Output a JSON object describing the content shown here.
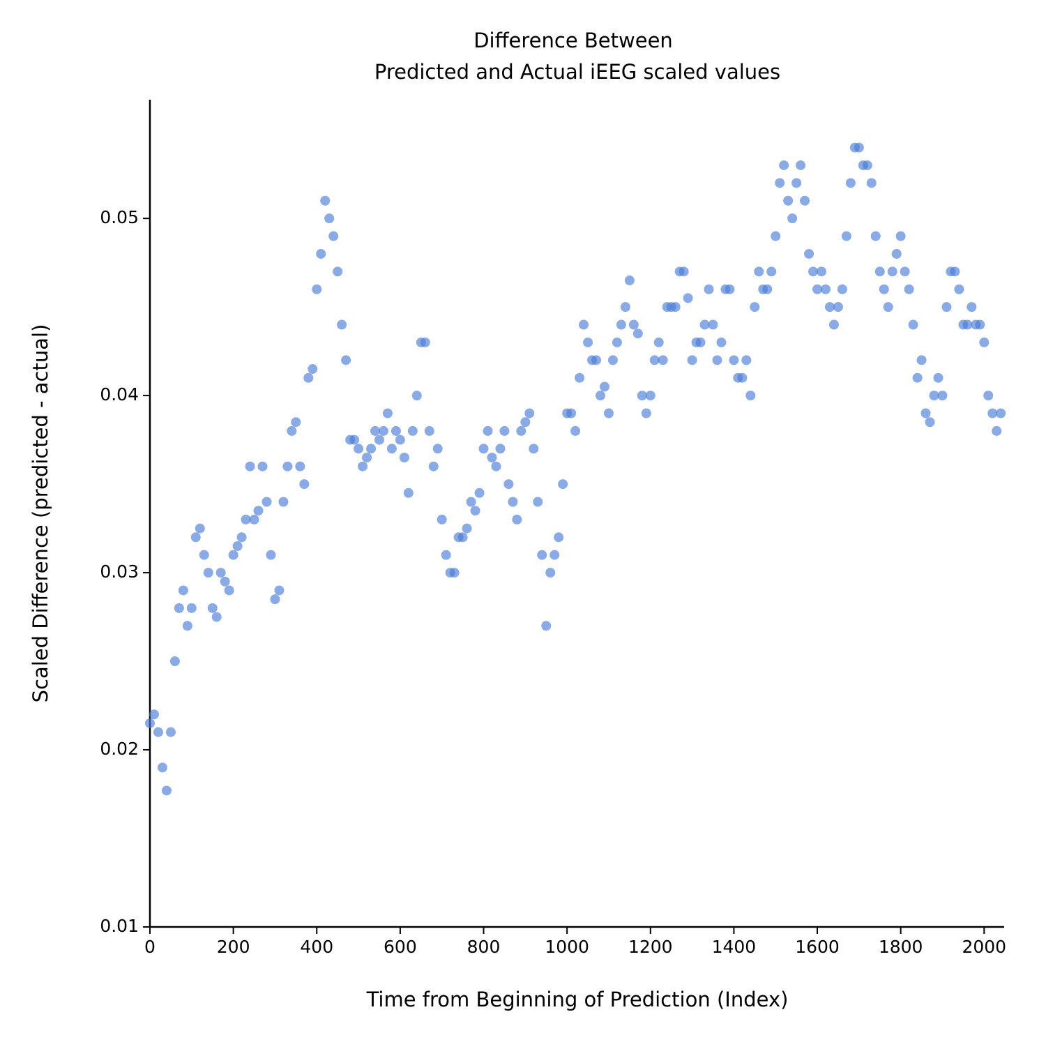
{
  "chart_data": {
    "type": "scatter",
    "title": [
      "Difference Between",
      "Predicted and Actual iEEG scaled values"
    ],
    "x_label": "Time from Beginning of Prediction (Index)",
    "y_label": "Scaled Difference (predicted - actual)",
    "color": "#4a7dd6",
    "xlim": [
      0,
      2048
    ],
    "ylim": [
      0.01,
      0.0567
    ],
    "xticks": [
      0,
      200,
      400,
      600,
      800,
      1000,
      1200,
      1400,
      1600,
      1800,
      2000
    ],
    "yticks": [
      0.01,
      0.02,
      0.03,
      0.04,
      0.05
    ],
    "x": [
      0,
      10,
      20,
      30,
      40,
      50,
      60,
      70,
      80,
      90,
      100,
      110,
      120,
      130,
      140,
      150,
      160,
      170,
      180,
      190,
      200,
      210,
      220,
      230,
      240,
      250,
      260,
      270,
      280,
      290,
      300,
      310,
      320,
      330,
      340,
      350,
      360,
      370,
      380,
      390,
      400,
      410,
      420,
      430,
      440,
      450,
      460,
      470,
      480,
      490,
      500,
      510,
      520,
      530,
      540,
      550,
      560,
      570,
      580,
      590,
      600,
      610,
      620,
      630,
      640,
      650,
      660,
      670,
      680,
      690,
      700,
      710,
      720,
      730,
      740,
      750,
      760,
      770,
      780,
      790,
      800,
      810,
      820,
      830,
      840,
      850,
      860,
      870,
      880,
      890,
      900,
      910,
      920,
      930,
      940,
      950,
      960,
      970,
      980,
      990,
      1000,
      1010,
      1020,
      1030,
      1040,
      1050,
      1060,
      1070,
      1080,
      1090,
      1100,
      1110,
      1120,
      1130,
      1140,
      1150,
      1160,
      1170,
      1180,
      1190,
      1200,
      1210,
      1220,
      1230,
      1240,
      1250,
      1260,
      1270,
      1280,
      1290,
      1300,
      1310,
      1320,
      1330,
      1340,
      1350,
      1360,
      1370,
      1380,
      1390,
      1400,
      1410,
      1420,
      1430,
      1440,
      1450,
      1460,
      1470,
      1480,
      1490,
      1500,
      1510,
      1520,
      1530,
      1540,
      1550,
      1560,
      1570,
      1580,
      1590,
      1600,
      1610,
      1620,
      1630,
      1640,
      1650,
      1660,
      1670,
      1680,
      1690,
      1700,
      1710,
      1720,
      1730,
      1740,
      1750,
      1760,
      1770,
      1780,
      1790,
      1800,
      1810,
      1820,
      1830,
      1840,
      1850,
      1860,
      1870,
      1880,
      1890,
      1900,
      1910,
      1920,
      1930,
      1940,
      1950,
      1960,
      1970,
      1980,
      1990,
      2000,
      2010,
      2020,
      2030,
      2040
    ],
    "values": [
      0.0215,
      0.022,
      0.021,
      0.019,
      0.0177,
      0.021,
      0.025,
      0.028,
      0.029,
      0.027,
      0.028,
      0.032,
      0.0325,
      0.031,
      0.03,
      0.028,
      0.0275,
      0.03,
      0.0295,
      0.029,
      0.031,
      0.0315,
      0.032,
      0.033,
      0.036,
      0.033,
      0.0335,
      0.036,
      0.034,
      0.031,
      0.0285,
      0.029,
      0.034,
      0.036,
      0.038,
      0.0385,
      0.036,
      0.035,
      0.041,
      0.0415,
      0.046,
      0.048,
      0.051,
      0.05,
      0.049,
      0.047,
      0.044,
      0.042,
      0.0375,
      0.0375,
      0.037,
      0.036,
      0.0365,
      0.037,
      0.038,
      0.0375,
      0.038,
      0.039,
      0.037,
      0.038,
      0.0375,
      0.0365,
      0.0345,
      0.038,
      0.04,
      0.043,
      0.043,
      0.038,
      0.036,
      0.037,
      0.033,
      0.031,
      0.03,
      0.03,
      0.032,
      0.032,
      0.0325,
      0.034,
      0.0335,
      0.0345,
      0.037,
      0.038,
      0.0365,
      0.036,
      0.037,
      0.038,
      0.035,
      0.034,
      0.033,
      0.038,
      0.0385,
      0.039,
      0.037,
      0.034,
      0.031,
      0.027,
      0.03,
      0.031,
      0.032,
      0.035,
      0.039,
      0.039,
      0.038,
      0.041,
      0.044,
      0.043,
      0.042,
      0.042,
      0.04,
      0.0405,
      0.039,
      0.042,
      0.043,
      0.044,
      0.045,
      0.0465,
      0.044,
      0.0435,
      0.04,
      0.039,
      0.04,
      0.042,
      0.043,
      0.042,
      0.045,
      0.045,
      0.045,
      0.047,
      0.047,
      0.0455,
      0.042,
      0.043,
      0.043,
      0.044,
      0.046,
      0.044,
      0.042,
      0.043,
      0.046,
      0.046,
      0.042,
      0.041,
      0.041,
      0.042,
      0.04,
      0.045,
      0.047,
      0.046,
      0.046,
      0.047,
      0.049,
      0.052,
      0.053,
      0.051,
      0.05,
      0.052,
      0.053,
      0.051,
      0.048,
      0.047,
      0.046,
      0.047,
      0.046,
      0.045,
      0.044,
      0.045,
      0.046,
      0.049,
      0.052,
      0.054,
      0.054,
      0.053,
      0.053,
      0.052,
      0.049,
      0.047,
      0.046,
      0.045,
      0.047,
      0.048,
      0.049,
      0.047,
      0.046,
      0.044,
      0.041,
      0.042,
      0.039,
      0.0385,
      0.04,
      0.041,
      0.04,
      0.045,
      0.047,
      0.047,
      0.046,
      0.044,
      0.044,
      0.045,
      0.044,
      0.044,
      0.043,
      0.04,
      0.039,
      0.038,
      0.039
    ]
  }
}
